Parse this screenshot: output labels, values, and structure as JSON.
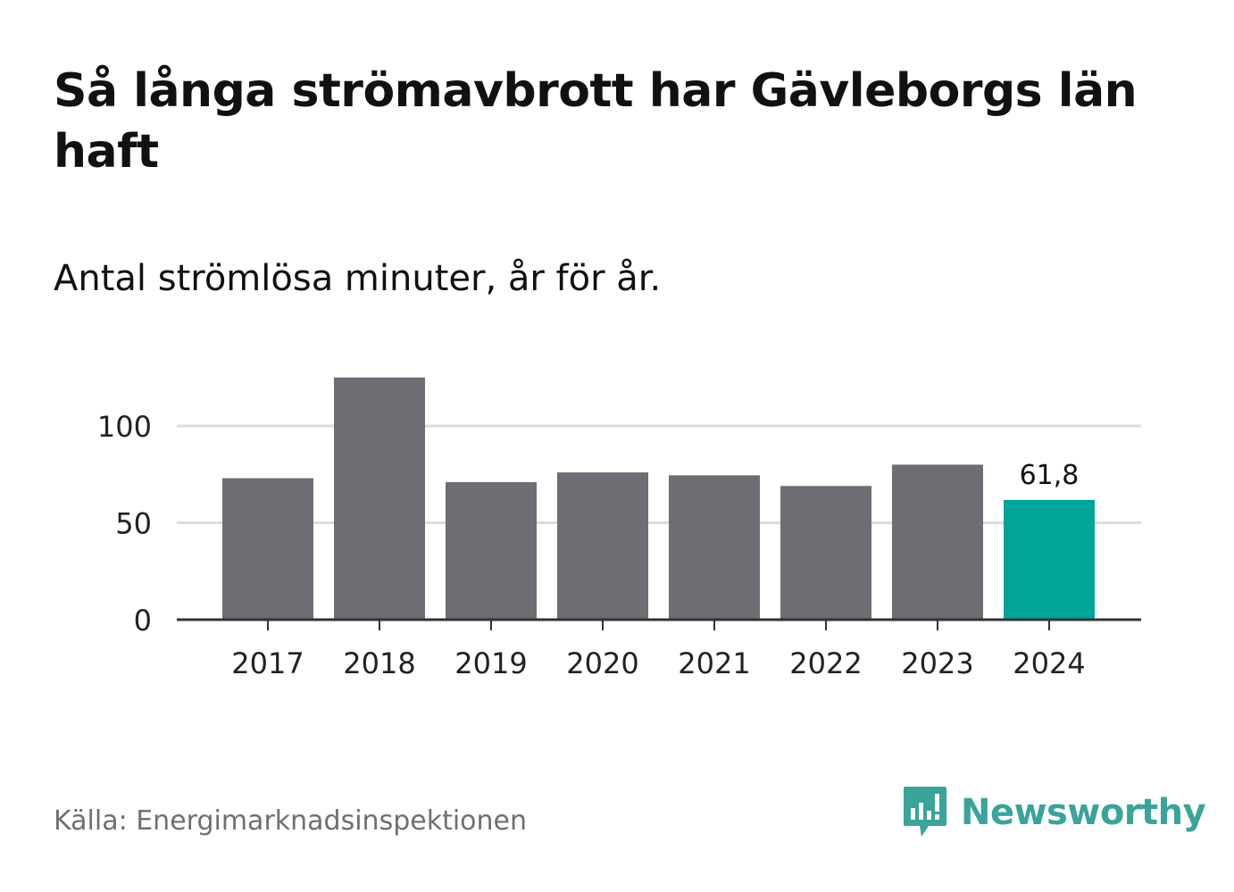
{
  "title": "Så långa strömavbrott har Gävleborgs län haft",
  "subtitle": "Antal strömlösa minuter, år för år.",
  "source": "Källa: Energimarknadsinspektionen",
  "brand": {
    "name": "Newsworthy",
    "color": "#3aa39a"
  },
  "colors": {
    "bar_default": "#6e6d73",
    "bar_highlight": "#00a499",
    "gridline": "#dcdcdc",
    "axis": "#333333",
    "text": "#111111"
  },
  "chart_data": {
    "type": "bar",
    "categories": [
      "2017",
      "2018",
      "2019",
      "2020",
      "2021",
      "2022",
      "2023",
      "2024"
    ],
    "values": [
      73,
      125,
      71,
      76,
      74.5,
      69,
      80,
      61.8
    ],
    "highlight_index": 7,
    "data_labels": [
      {
        "index": 7,
        "text": "61,8"
      }
    ],
    "yticks": [
      0,
      50,
      100
    ],
    "ytick_labels": [
      "0",
      "50",
      "100"
    ],
    "ylim": [
      0,
      125
    ],
    "grid": true,
    "xlabel": "",
    "ylabel": ""
  }
}
